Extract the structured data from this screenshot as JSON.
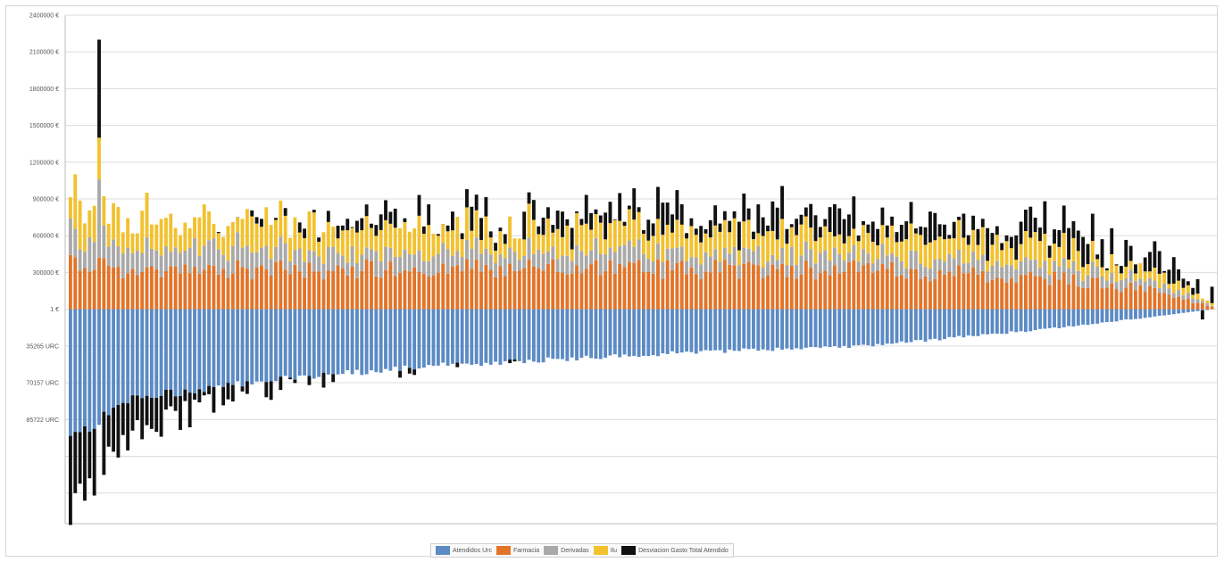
{
  "chart_data": {
    "type": "bar",
    "stacked": true,
    "title": "",
    "xlabel": "",
    "ylabel": "",
    "ylim": [
      -1750000,
      2400000
    ],
    "grid": true,
    "legend_position": "bottom",
    "y_ticks": [
      {
        "value": 2400000,
        "label": "2400000 €"
      },
      {
        "value": 2100000,
        "label": "2100000 €"
      },
      {
        "value": 1800000,
        "label": "1800000 €"
      },
      {
        "value": 1500000,
        "label": "1500000 €"
      },
      {
        "value": 1200000,
        "label": "1200000 €"
      },
      {
        "value": 900000,
        "label": "900000 €"
      },
      {
        "value": 600000,
        "label": "600000 €"
      },
      {
        "value": 300000,
        "label": "300000 €"
      },
      {
        "value": 0,
        "label": "1 €"
      },
      {
        "value": -300000,
        "label": "35265 URC"
      },
      {
        "value": -600000,
        "label": "70157 URC"
      },
      {
        "value": -900000,
        "label": "85722 URC"
      },
      {
        "value": -1200000,
        "label": ""
      },
      {
        "value": -1500000,
        "label": ""
      },
      {
        "value": -1750000,
        "label": ""
      }
    ],
    "series": [
      {
        "name": "Atendidos Urc",
        "color": "#5b8ac4"
      },
      {
        "name": "Farmacia",
        "color": "#e27428"
      },
      {
        "name": "Derivadas",
        "color": "#a9a9a9"
      },
      {
        "name": "Ilu",
        "color": "#f2c12e"
      },
      {
        "name": "Desviacion Gasto Total Atendido",
        "color": "#111111"
      }
    ],
    "bar_count": 240,
    "profile_points": {
      "x_fraction": [
        0,
        0.05,
        0.15,
        0.3,
        0.5,
        0.7,
        0.85,
        0.95,
        1
      ],
      "atendidos_urc": [
        -1100000,
        -750000,
        -620000,
        -480000,
        -380000,
        -300000,
        -170000,
        -60000,
        0
      ],
      "farmacia": [
        380000,
        320000,
        320000,
        330000,
        330000,
        320000,
        270000,
        150000,
        20000
      ],
      "derivadas": [
        220000,
        190000,
        170000,
        150000,
        130000,
        120000,
        110000,
        70000,
        10000
      ],
      "ilu": [
        320000,
        250000,
        230000,
        200000,
        180000,
        180000,
        150000,
        90000,
        15000
      ],
      "desviacion_mean": [
        -600000,
        -280000,
        -60000,
        70000,
        140000,
        160000,
        140000,
        120000,
        20000
      ]
    },
    "peak_bar": {
      "position": 6,
      "total": 2200000
    }
  }
}
